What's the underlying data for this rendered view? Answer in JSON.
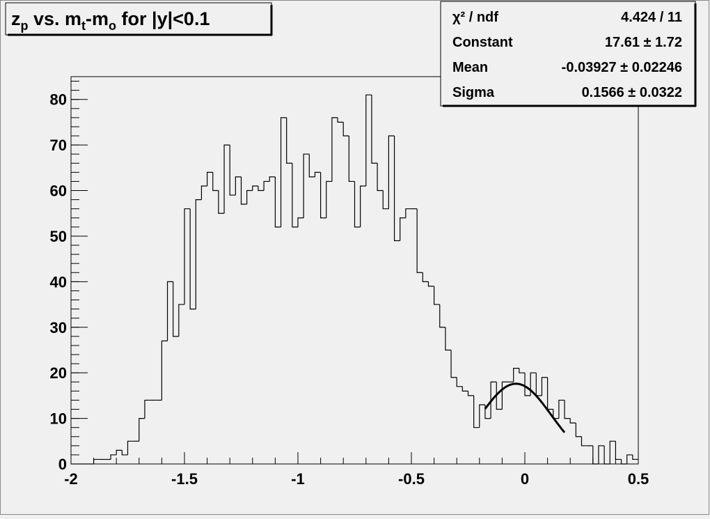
{
  "chart_data": {
    "type": "histogram",
    "title_parts": [
      "z",
      "p",
      " vs. m",
      "t",
      "-m",
      "o",
      " for |y|<0.1"
    ],
    "bins": [
      -2,
      -1.975,
      -1.95,
      -1.925,
      -1.9,
      -1.875,
      -1.85,
      -1.825,
      -1.8,
      -1.775,
      -1.75,
      -1.725,
      -1.7,
      -1.675,
      -1.65,
      -1.625,
      -1.6,
      -1.575,
      -1.55,
      -1.525,
      -1.5,
      -1.475,
      -1.45,
      -1.425,
      -1.4,
      -1.375,
      -1.35,
      -1.325,
      -1.3,
      -1.275,
      -1.25,
      -1.225,
      -1.2,
      -1.175,
      -1.15,
      -1.125,
      -1.1,
      -1.075,
      -1.05,
      -1.025,
      -1,
      -0.975,
      -0.95,
      -0.925,
      -0.9,
      -0.875,
      -0.85,
      -0.825,
      -0.8,
      -0.775,
      -0.75,
      -0.725,
      -0.7,
      -0.675,
      -0.65,
      -0.625,
      -0.6,
      -0.575,
      -0.55,
      -0.525,
      -0.5,
      -0.475,
      -0.45,
      -0.425,
      -0.4,
      -0.375,
      -0.35,
      -0.325,
      -0.3,
      -0.275,
      -0.25,
      -0.225,
      -0.2,
      -0.175,
      -0.15,
      -0.125,
      -0.1,
      -0.075,
      -0.05,
      -0.025,
      0,
      0.025,
      0.05,
      0.075,
      0.1,
      0.125,
      0.15,
      0.175,
      0.2,
      0.225,
      0.25,
      0.275,
      0.3,
      0.325,
      0.35,
      0.375,
      0.4,
      0.425,
      0.45,
      0.475,
      0.5
    ],
    "values": [
      0,
      0,
      0,
      0,
      1,
      1,
      1,
      2,
      3,
      2,
      5,
      5,
      10,
      14,
      14,
      14,
      27,
      40,
      28,
      35,
      56,
      34,
      58,
      61,
      64,
      60,
      55,
      70,
      59,
      63,
      57,
      60,
      61,
      60,
      62,
      63,
      52,
      76,
      66,
      52,
      54,
      68,
      63,
      64,
      54,
      62,
      76,
      75,
      72,
      62,
      52,
      61,
      81,
      66,
      60,
      56,
      72,
      49,
      54,
      56,
      56,
      42,
      40,
      39,
      35,
      30,
      25,
      19,
      17,
      16,
      15,
      8,
      13,
      10,
      18,
      12,
      18,
      18,
      21,
      20,
      15,
      20,
      15,
      19,
      12,
      10,
      14,
      10,
      9,
      6,
      4,
      4,
      0,
      4,
      0,
      5,
      1,
      0,
      2,
      1
    ],
    "color": "#000000",
    "xlim": [
      -2,
      0.5
    ],
    "xticks": [
      -2,
      -1.5,
      -1,
      -0.5,
      0,
      0.5
    ],
    "ylim": [
      0,
      85
    ],
    "yticks": [
      0,
      10,
      20,
      30,
      40,
      50,
      60,
      70,
      80
    ],
    "fit": {
      "constant": 17.61,
      "mean": -0.03927,
      "sigma": 0.1566,
      "range": [
        -0.175,
        0.175
      ]
    },
    "stats": [
      {
        "label": "χ² / ndf",
        "value": "4.424 / 11"
      },
      {
        "label": "Constant",
        "value": "17.61 ± 1.72"
      },
      {
        "label": "Mean",
        "value": "-0.03927 ± 0.02246"
      },
      {
        "label": "Sigma",
        "value": "0.1566 ± 0.0322"
      }
    ]
  }
}
